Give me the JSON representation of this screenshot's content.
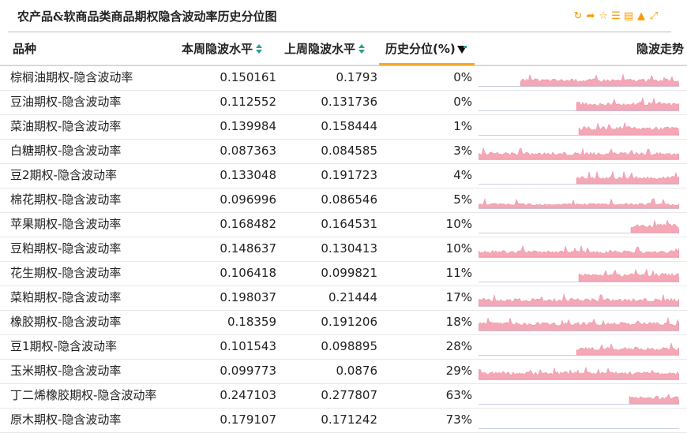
{
  "title": "农产品&软商品类商品期权隐含波动率历史分位图",
  "toolbar_icons": [
    "refresh-icon",
    "share-icon",
    "star-icon",
    "list-icon",
    "export-icon",
    "bell-icon",
    "fullscreen-icon"
  ],
  "colors": {
    "accent": "#ff9900",
    "sparkline": "#f4a7b5",
    "sort": "#2a9d8f",
    "active_underline": "#f5a623"
  },
  "columns": {
    "name": "品种",
    "current": "本周隐波水平",
    "previous": "上周隐波水平",
    "percentile": "历史分位(%)",
    "trend": "隐波走势"
  },
  "rows": [
    {
      "name": "棕榈油期权-隐含波动率",
      "current": "0.150161",
      "previous": "0.1793",
      "percentile": "0%",
      "spark_start": 0.21,
      "spark_level": 0.45
    },
    {
      "name": "豆油期权-隐含波动率",
      "current": "0.112552",
      "previous": "0.131736",
      "percentile": "0%",
      "spark_start": 0.49,
      "spark_level": 0.55
    },
    {
      "name": "菜油期权-隐含波动率",
      "current": "0.139984",
      "previous": "0.158444",
      "percentile": "1%",
      "spark_start": 0.5,
      "spark_level": 0.55
    },
    {
      "name": "白糖期权-隐含波动率",
      "current": "0.087363",
      "previous": "0.084585",
      "percentile": "3%",
      "spark_start": 0.0,
      "spark_level": 0.45
    },
    {
      "name": "豆2期权-隐含波动率",
      "current": "0.133048",
      "previous": "0.191723",
      "percentile": "4%",
      "spark_start": 0.49,
      "spark_level": 0.5
    },
    {
      "name": "棉花期权-隐含波动率",
      "current": "0.096996",
      "previous": "0.086546",
      "percentile": "5%",
      "spark_start": 0.0,
      "spark_level": 0.25
    },
    {
      "name": "苹果期权-隐含波动率",
      "current": "0.168482",
      "previous": "0.164531",
      "percentile": "10%",
      "spark_start": 0.76,
      "spark_level": 0.6
    },
    {
      "name": "豆粕期权-隐含波动率",
      "current": "0.148637",
      "previous": "0.130413",
      "percentile": "10%",
      "spark_start": 0.0,
      "spark_level": 0.4
    },
    {
      "name": "花生期权-隐含波动率",
      "current": "0.106418",
      "previous": "0.099821",
      "percentile": "11%",
      "spark_start": 0.5,
      "spark_level": 0.6
    },
    {
      "name": "菜粕期权-隐含波动率",
      "current": "0.198037",
      "previous": "0.21444",
      "percentile": "17%",
      "spark_start": 0.0,
      "spark_level": 0.5
    },
    {
      "name": "橡胶期权-隐含波动率",
      "current": "0.18359",
      "previous": "0.191206",
      "percentile": "18%",
      "spark_start": 0.0,
      "spark_level": 0.55
    },
    {
      "name": "豆1期权-隐含波动率",
      "current": "0.101543",
      "previous": "0.098895",
      "percentile": "28%",
      "spark_start": 0.49,
      "spark_level": 0.5
    },
    {
      "name": "玉米期权-隐含波动率",
      "current": "0.099773",
      "previous": "0.0876",
      "percentile": "29%",
      "spark_start": 0.0,
      "spark_level": 0.5
    },
    {
      "name": "丁二烯橡胶期权-隐含波动率",
      "current": "0.247103",
      "previous": "0.277807",
      "percentile": "63%",
      "spark_start": 0.75,
      "spark_level": 0.5
    },
    {
      "name": "原木期权-隐含波动率",
      "current": "0.179107",
      "previous": "0.171242",
      "percentile": "73%",
      "spark_start": 0.0,
      "spark_level": 0.0
    }
  ]
}
